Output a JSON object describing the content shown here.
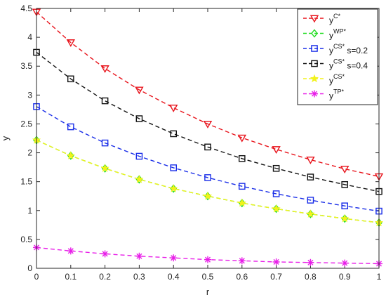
{
  "chart_data": {
    "type": "line",
    "title": "",
    "xlabel": "r",
    "ylabel": "y",
    "xlim": [
      0,
      1
    ],
    "ylim": [
      0,
      4.5
    ],
    "grid": false,
    "legend_position": "top-right",
    "xticks": [
      "0",
      "0.1",
      "0.2",
      "0.3",
      "0.4",
      "0.5",
      "0.6",
      "0.7",
      "0.8",
      "0.9",
      "1"
    ],
    "yticks": [
      "0",
      "0.5",
      "1",
      "1.5",
      "2",
      "2.5",
      "3",
      "3.5",
      "4",
      "4.5"
    ],
    "x": [
      0,
      0.1,
      0.2,
      0.3,
      0.4,
      0.5,
      0.6,
      0.7,
      0.8,
      0.9,
      1.0
    ],
    "series": [
      {
        "base": "y",
        "sup": "C*",
        "suffix": "",
        "color": "#e8131b",
        "marker": "triangle-down",
        "values": [
          4.44,
          3.91,
          3.46,
          3.09,
          2.78,
          2.5,
          2.26,
          2.06,
          1.88,
          1.72,
          1.59
        ]
      },
      {
        "base": "y",
        "sup": "WP*",
        "suffix": "",
        "color": "#22dd22",
        "marker": "diamond",
        "values": [
          2.22,
          1.95,
          1.73,
          1.54,
          1.38,
          1.25,
          1.13,
          1.03,
          0.94,
          0.86,
          0.79
        ]
      },
      {
        "base": "y",
        "sup": "CS*",
        "suffix": " s=0.2",
        "color": "#1a2ee8",
        "marker": "square",
        "values": [
          2.8,
          2.45,
          2.17,
          1.94,
          1.74,
          1.57,
          1.42,
          1.29,
          1.18,
          1.08,
          0.99
        ]
      },
      {
        "base": "y",
        "sup": "CS*",
        "suffix": " s=0.4",
        "color": "#111111",
        "marker": "square",
        "values": [
          3.74,
          3.28,
          2.9,
          2.59,
          2.33,
          2.1,
          1.9,
          1.73,
          1.58,
          1.45,
          1.33
        ]
      },
      {
        "base": "y",
        "sup": "CS*",
        "suffix": "",
        "color": "#f2f21c",
        "marker": "star",
        "values": [
          2.22,
          1.95,
          1.73,
          1.54,
          1.38,
          1.25,
          1.13,
          1.03,
          0.94,
          0.86,
          0.79
        ]
      },
      {
        "base": "y",
        "sup": "TP*",
        "suffix": "",
        "color": "#e81ee8",
        "marker": "asterisk",
        "values": [
          0.36,
          0.3,
          0.25,
          0.21,
          0.18,
          0.15,
          0.13,
          0.11,
          0.1,
          0.09,
          0.08
        ]
      }
    ]
  }
}
